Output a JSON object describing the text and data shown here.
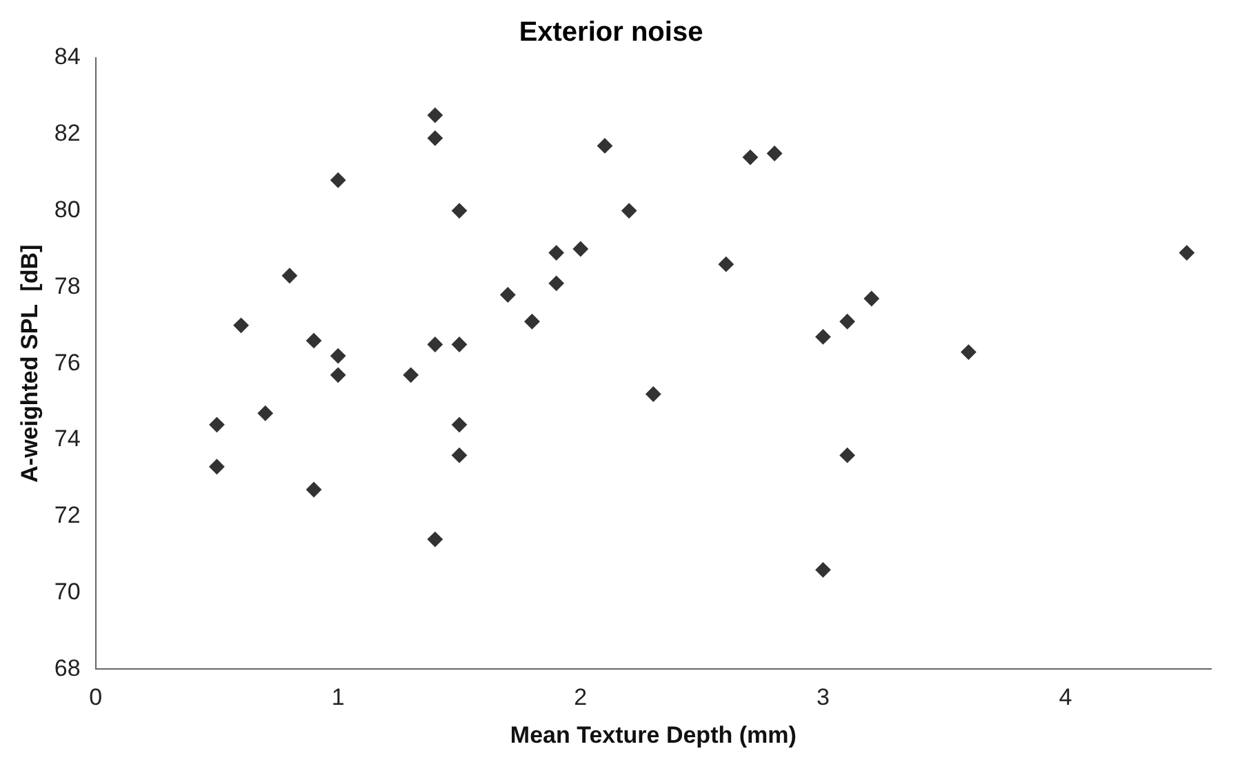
{
  "chart_data": {
    "type": "scatter",
    "title": "Exterior noise",
    "xlabel": "Mean Texture Depth (mm)",
    "ylabel": "A-weighted SPL  [dB]",
    "x": [
      0.5,
      0.5,
      0.6,
      0.7,
      0.8,
      0.9,
      0.9,
      1.0,
      1.0,
      1.0,
      1.3,
      1.4,
      1.4,
      1.4,
      1.4,
      1.5,
      1.5,
      1.5,
      1.5,
      1.7,
      1.8,
      1.9,
      1.9,
      2.0,
      2.1,
      2.2,
      2.3,
      2.6,
      2.7,
      2.8,
      3.0,
      3.0,
      3.1,
      3.1,
      3.2,
      3.6,
      4.5
    ],
    "values": [
      74.4,
      73.3,
      77.0,
      74.7,
      78.3,
      76.6,
      72.7,
      80.8,
      76.2,
      75.7,
      75.7,
      82.5,
      81.9,
      76.5,
      71.4,
      80.0,
      76.5,
      74.4,
      73.6,
      77.8,
      77.1,
      78.9,
      78.1,
      79.0,
      81.7,
      80.0,
      75.2,
      78.6,
      81.4,
      81.5,
      76.7,
      70.6,
      77.1,
      73.6,
      77.7,
      76.3,
      78.9
    ],
    "color": "#333333",
    "marker": "diamond",
    "xlim": [
      0,
      4.6
    ],
    "xticks": [
      0,
      1,
      2,
      3,
      4
    ],
    "ylim": [
      68,
      84
    ],
    "yticks": [
      68,
      70,
      72,
      74,
      76,
      78,
      80,
      82,
      84
    ],
    "grid": false,
    "legend": false
  }
}
